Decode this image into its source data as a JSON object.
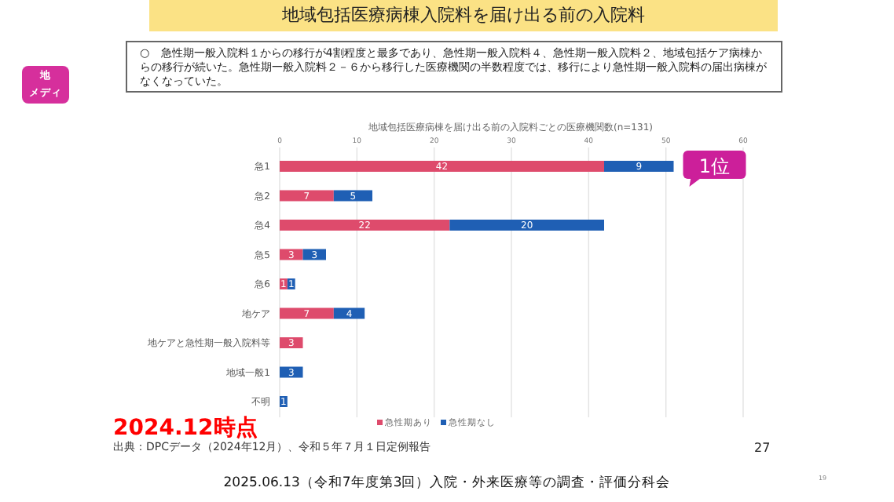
{
  "chart_data": {
    "type": "bar",
    "orientation": "horizontal",
    "stacked": true,
    "title": "地域包括医療病棟入院料を届け出る前の入院料",
    "subtitle": "地域包括医療病棟を届け出る前の入院料ごとの医療機関数(n=131)",
    "categories": [
      "急1",
      "急2",
      "急4",
      "急5",
      "急6",
      "地ケア",
      "地ケアと急性期一般入院料等",
      "地域一般1",
      "不明"
    ],
    "series": [
      {
        "name": "急性期あり",
        "color": "#de4b6c",
        "values": [
          42,
          7,
          22,
          3,
          1,
          7,
          3,
          null,
          null
        ]
      },
      {
        "name": "急性期なし",
        "color": "#1f5fb4",
        "values": [
          9,
          5,
          20,
          3,
          1,
          4,
          null,
          3,
          1
        ]
      }
    ],
    "xlim": [
      0,
      60
    ],
    "xticks": [
      0,
      10,
      20,
      30,
      40,
      50,
      60
    ],
    "grid": "x",
    "legend": "bottom",
    "data_labels": true,
    "annotations": [
      "○　急性期一般入院料１からの移行が4割程度と最多であり、急性期一般入院料４、急性期一般入院料２、地域包括ケア病棟からの移行が続いた。急性期一般入院料２－６から移行した医療機関の半数程度では、移行により急性期一般入院料の届出病棟がなくなっていた。",
      "地",
      "メディ",
      {
        "text": "1位",
        "x": 51,
        "y": "急1"
      },
      "2024.12時点",
      "出典：DPCデータ（2024年12月）、令和５年７月１日定例報告",
      "27",
      "2025.06.13（令和7年度第3回）入院・外来医療等の調査・評価分科会",
      "19"
    ]
  }
}
